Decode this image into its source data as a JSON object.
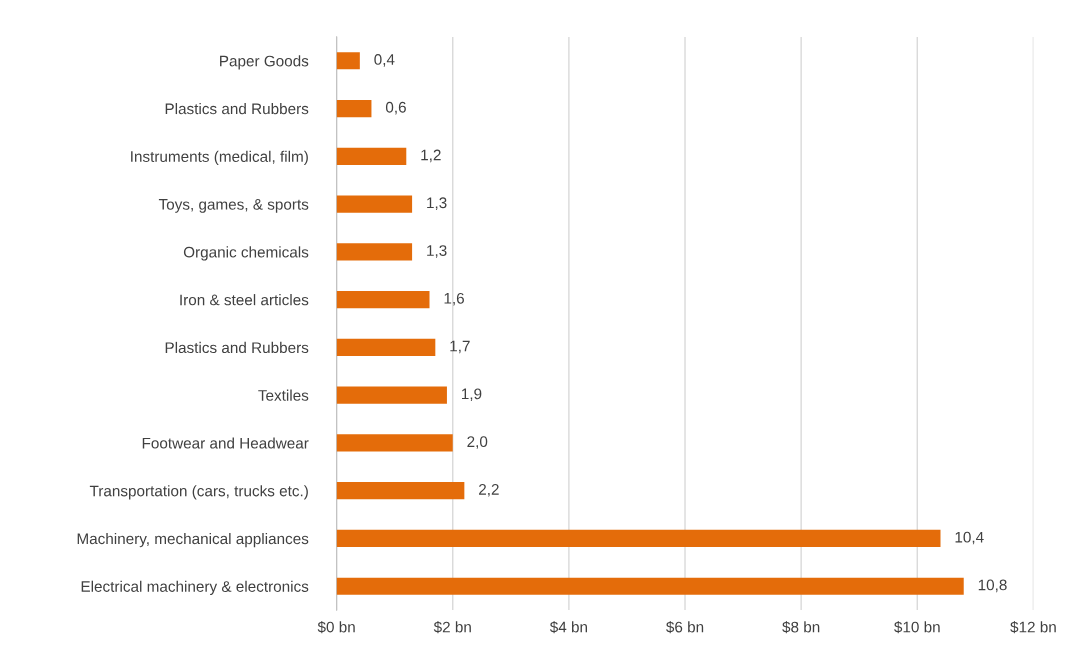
{
  "chart_data": {
    "type": "bar",
    "orientation": "horizontal",
    "categories": [
      "Paper Goods",
      "Plastics and Rubbers",
      "Instruments (medical, film)",
      "Toys, games, & sports",
      "Organic chemicals",
      "Iron & steel articles",
      "Plastics and Rubbers",
      "Textiles",
      "Footwear and Headwear",
      "Transportation (cars, trucks etc.)",
      "Machinery, mechanical appliances",
      "Electrical machinery & electronics"
    ],
    "values": [
      0.4,
      0.6,
      1.2,
      1.3,
      1.3,
      1.6,
      1.7,
      1.9,
      2.0,
      2.2,
      10.4,
      10.8
    ],
    "value_labels": [
      "0,4",
      "0,6",
      "1,2",
      "1,3",
      "1,3",
      "1,6",
      "1,7",
      "1,9",
      "2,0",
      "2,2",
      "10,4",
      "10,8"
    ],
    "color": "#e46c0a",
    "xlim": [
      0,
      12
    ],
    "xticks": [
      {
        "value": 0,
        "label": "$0 bn"
      },
      {
        "value": 2,
        "label": "$2 bn"
      },
      {
        "value": 4,
        "label": "$4 bn"
      },
      {
        "value": 6,
        "label": "$6 bn"
      },
      {
        "value": 8,
        "label": "$8 bn"
      },
      {
        "value": 10,
        "label": "$10 bn"
      },
      {
        "value": 12,
        "label": "$12 bn"
      }
    ],
    "grid": "x",
    "legend": false
  }
}
